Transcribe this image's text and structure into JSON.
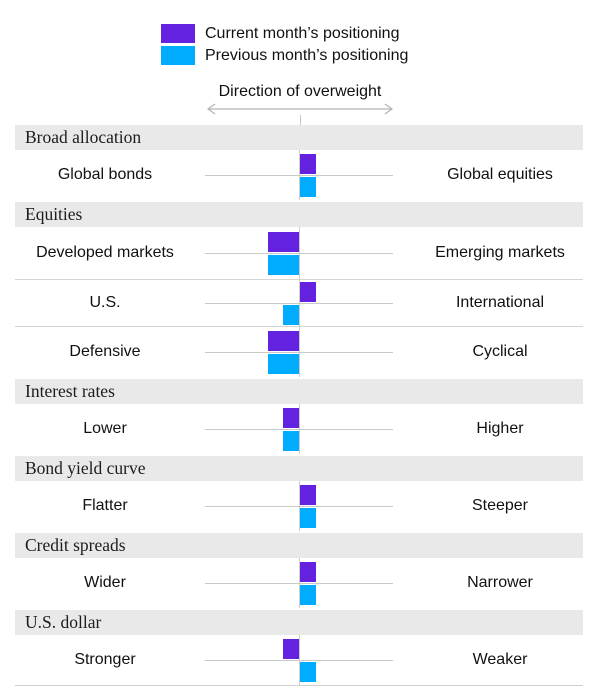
{
  "legend": {
    "current": {
      "label": "Current month’s positioning",
      "color": "#6222E0"
    },
    "previous": {
      "label": "Previous month’s positioning",
      "color": "#00ACFF"
    }
  },
  "direction_label": "Direction of overweight",
  "chart_data": {
    "type": "bar",
    "orientation": "horizontal-diverging",
    "axis_label": "Direction of overweight",
    "value_scale": "fraction of half-axis; positive = toward right-hand label, negative = toward left-hand label",
    "series_names": [
      "Current month’s positioning",
      "Previous month’s positioning"
    ],
    "sections": [
      {
        "header": "Broad allocation",
        "rows": [
          {
            "left": "Global bonds",
            "right": "Global equities",
            "current": 0.17,
            "previous": 0.17
          }
        ]
      },
      {
        "header": "Equities",
        "rows": [
          {
            "left": "Developed markets",
            "right": "Emerging markets",
            "current": -0.33,
            "previous": -0.33
          },
          {
            "left": "U.S.",
            "right": "International",
            "current": 0.17,
            "previous": -0.17
          },
          {
            "left": "Defensive",
            "right": "Cyclical",
            "current": -0.33,
            "previous": -0.33
          }
        ]
      },
      {
        "header": "Interest rates",
        "rows": [
          {
            "left": "Lower",
            "right": "Higher",
            "current": -0.17,
            "previous": -0.17
          }
        ]
      },
      {
        "header": "Bond yield curve",
        "rows": [
          {
            "left": "Flatter",
            "right": "Steeper",
            "current": 0.17,
            "previous": 0.17
          }
        ]
      },
      {
        "header": "Credit spreads",
        "rows": [
          {
            "left": "Wider",
            "right": "Narrower",
            "current": 0.17,
            "previous": 0.17
          }
        ]
      },
      {
        "header": "U.S. dollar",
        "rows": [
          {
            "left": "Stronger",
            "right": "Weaker",
            "current": -0.17,
            "previous": 0.17
          }
        ]
      }
    ]
  }
}
